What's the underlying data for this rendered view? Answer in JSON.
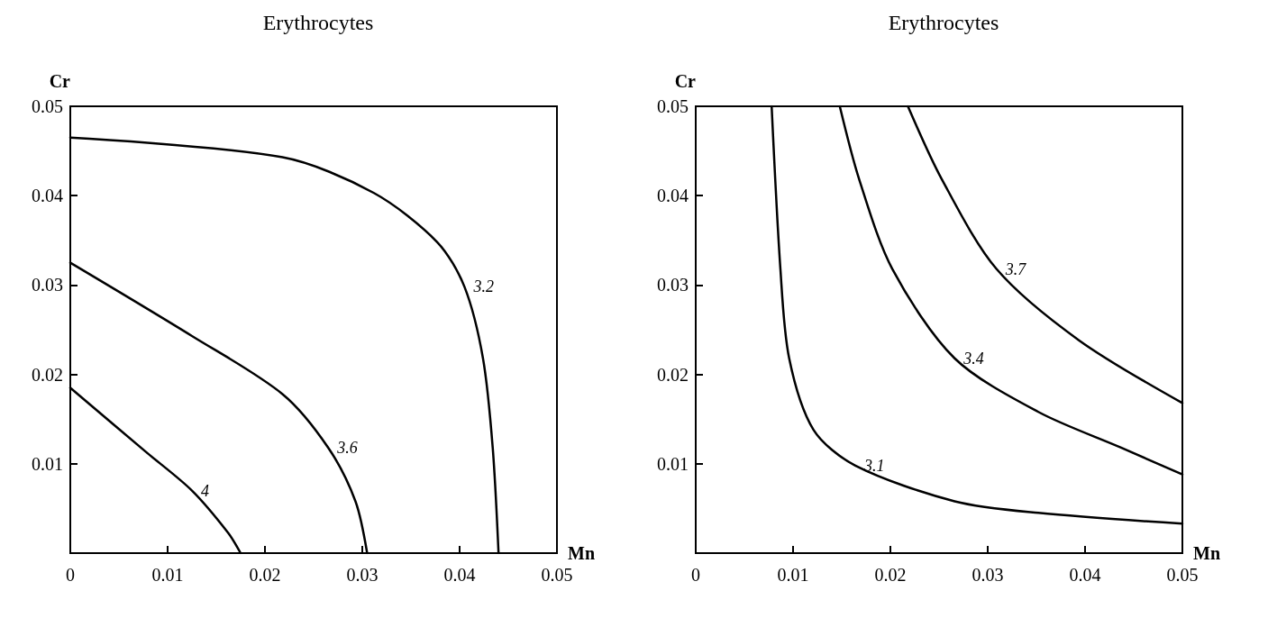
{
  "chart_data": [
    {
      "type": "line",
      "title": "Erythrocytes",
      "xlabel": "Mn",
      "ylabel": "Cr",
      "xlim": [
        0,
        0.05
      ],
      "ylim": [
        0,
        0.05
      ],
      "xticks": [
        0,
        0.01,
        0.02,
        0.03,
        0.04,
        0.05
      ],
      "yticks": [
        0.01,
        0.02,
        0.03,
        0.04,
        0.05
      ],
      "marker": "none",
      "line_style": "solid",
      "grid": false,
      "series": [
        {
          "name": "3.2",
          "color": "#000000",
          "x": [
            0,
            0.0218,
            0.0312,
            0.0377,
            0.0405,
            0.0424,
            0.0434,
            0.044
          ],
          "values": [
            0.0465,
            0.0443,
            0.0403,
            0.0348,
            0.0298,
            0.0218,
            0.0118,
            0
          ]
        },
        {
          "name": "3.6",
          "color": "#000000",
          "x": [
            0,
            0.0125,
            0.0218,
            0.0265,
            0.0293,
            0.0305
          ],
          "values": [
            0.0325,
            0.0243,
            0.0178,
            0.0118,
            0.0058,
            0
          ]
        },
        {
          "name": "4",
          "color": "#000000",
          "x": [
            0,
            0.0078,
            0.0125,
            0.0162,
            0.0175
          ],
          "values": [
            0.0185,
            0.0113,
            0.007,
            0.0023,
            0
          ]
        }
      ]
    },
    {
      "type": "line",
      "title": "Erythrocytes",
      "xlabel": "Mn",
      "ylabel": "Cr",
      "xlim": [
        0,
        0.05
      ],
      "ylim": [
        0,
        0.05
      ],
      "xticks": [
        0,
        0.01,
        0.02,
        0.03,
        0.04,
        0.05
      ],
      "yticks": [
        0.01,
        0.02,
        0.03,
        0.04,
        0.05
      ],
      "marker": "none",
      "line_style": "solid",
      "grid": false,
      "series": [
        {
          "name": "3.1",
          "color": "#000000",
          "x": [
            0.0078,
            0.0087,
            0.0096,
            0.0121,
            0.0164,
            0.0266,
            0.0352,
            0.05
          ],
          "values": [
            0.05,
            0.0318,
            0.0218,
            0.0138,
            0.0098,
            0.0058,
            0.0045,
            0.0033
          ]
        },
        {
          "name": "3.4",
          "color": "#000000",
          "x": [
            0.0148,
            0.0168,
            0.0202,
            0.0266,
            0.0352,
            0.0437,
            0.05
          ],
          "values": [
            0.05,
            0.0418,
            0.0318,
            0.0218,
            0.0158,
            0.0118,
            0.0088
          ]
        },
        {
          "name": "3.7",
          "color": "#000000",
          "x": [
            0.0218,
            0.0253,
            0.0309,
            0.0394,
            0.05
          ],
          "values": [
            0.05,
            0.0418,
            0.0318,
            0.0238,
            0.0168
          ]
        }
      ]
    }
  ]
}
